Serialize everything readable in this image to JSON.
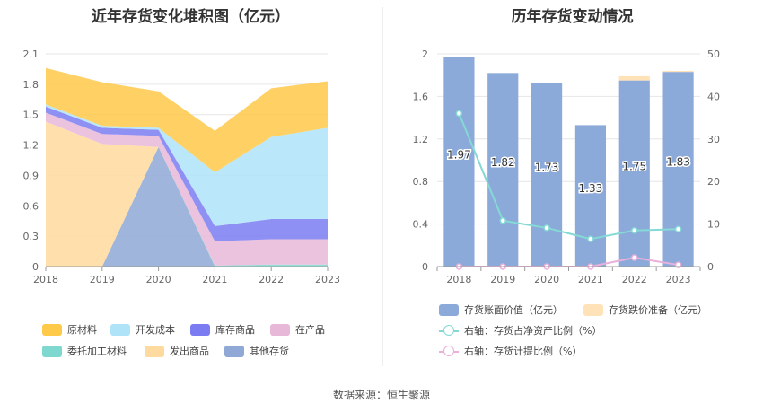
{
  "left_chart": {
    "title": "近年存货变化堆积图（亿元）",
    "legend": [
      {
        "label": "原材料",
        "color": "#FFC94A"
      },
      {
        "label": "开发成本",
        "color": "#AEE3F8"
      },
      {
        "label": "库存商品",
        "color": "#7B7CF2"
      },
      {
        "label": "在产品",
        "color": "#E8B8D8"
      },
      {
        "label": "委托加工材料",
        "color": "#7ED8D0"
      },
      {
        "label": "发出商品",
        "color": "#FFDA9E"
      },
      {
        "label": "其他存货",
        "color": "#8FA8D6"
      }
    ]
  },
  "right_chart": {
    "title": "历年存货变动情况",
    "legend": [
      {
        "label": "存货账面价值（亿元）",
        "color": "#8CAAD9"
      },
      {
        "label": "存货跌价准备（亿元）",
        "color": "#FFE2B8"
      },
      {
        "label": "右轴：存货占净资产比例（%）",
        "color": "#84D9D5"
      },
      {
        "label": "右轴：存货计提比例（%）",
        "color": "#E8B0DA"
      }
    ]
  },
  "source": "数据来源：恒生聚源",
  "chart_data": [
    {
      "type": "area",
      "stacked": true,
      "title": "近年存货变化堆积图（亿元）",
      "x": [
        "2018",
        "2019",
        "2020",
        "2021",
        "2022",
        "2023"
      ],
      "ylim": [
        0,
        2.1
      ],
      "yticks": [
        "0",
        "0.3",
        "0.6",
        "0.9",
        "1.2",
        "1.5",
        "1.8",
        "2.1"
      ],
      "legend_position": "bottom",
      "series": [
        {
          "name": "其他存货",
          "color": "#8FA8D6",
          "values": [
            0,
            0,
            1.18,
            0,
            0,
            0
          ]
        },
        {
          "name": "发出商品",
          "color": "#FFDA9E",
          "values": [
            1.43,
            1.21,
            0,
            0,
            0,
            0
          ]
        },
        {
          "name": "委托加工材料",
          "color": "#7ED8D0",
          "values": [
            0,
            0,
            0,
            0.01,
            0.02,
            0.02
          ]
        },
        {
          "name": "在产品",
          "color": "#E8B8D8",
          "values": [
            0.09,
            0.1,
            0.11,
            0.24,
            0.25,
            0.25
          ]
        },
        {
          "name": "库存商品",
          "color": "#7B7CF2",
          "values": [
            0.06,
            0.06,
            0.06,
            0.15,
            0.2,
            0.2
          ]
        },
        {
          "name": "开发成本",
          "color": "#AEE3F8",
          "values": [
            0.02,
            0.02,
            0.02,
            0.53,
            0.81,
            0.9
          ]
        },
        {
          "name": "原材料",
          "color": "#FFC94A",
          "values": [
            0.36,
            0.43,
            0.36,
            0.41,
            0.48,
            0.46
          ]
        }
      ]
    },
    {
      "type": "bar",
      "stacked": true,
      "title": "历年存货变动情况",
      "categories": [
        "2018",
        "2019",
        "2020",
        "2021",
        "2022",
        "2023"
      ],
      "ylim": [
        0,
        2
      ],
      "yticks": [
        "0",
        "0.4",
        "0.8",
        "1.2",
        "1.6",
        "2"
      ],
      "y2lim": [
        0,
        50
      ],
      "y2ticks": [
        "0",
        "10",
        "20",
        "30",
        "40",
        "50"
      ],
      "legend_position": "bottom",
      "series": [
        {
          "name": "存货账面价值（亿元）",
          "color": "#8CAAD9",
          "values": [
            1.97,
            1.82,
            1.73,
            1.33,
            1.75,
            1.83
          ],
          "labels": [
            "1.97",
            "1.82",
            "1.73",
            "1.33",
            "1.75",
            "1.83"
          ]
        },
        {
          "name": "存货跌价准备（亿元）",
          "color": "#FFE2B8",
          "values": [
            0,
            0,
            0,
            0,
            0.04,
            0.01
          ]
        },
        {
          "name": "右轴：存货占净资产比例（%）",
          "type": "line",
          "axis": "right",
          "color": "#84D9D5",
          "values": [
            36.0,
            10.8,
            9.1,
            6.5,
            8.5,
            8.8
          ]
        },
        {
          "name": "右轴：存货计提比例（%）",
          "type": "line",
          "axis": "right",
          "color": "#E8B0DA",
          "values": [
            0,
            0,
            0,
            0,
            2.1,
            0.4
          ]
        }
      ]
    }
  ]
}
